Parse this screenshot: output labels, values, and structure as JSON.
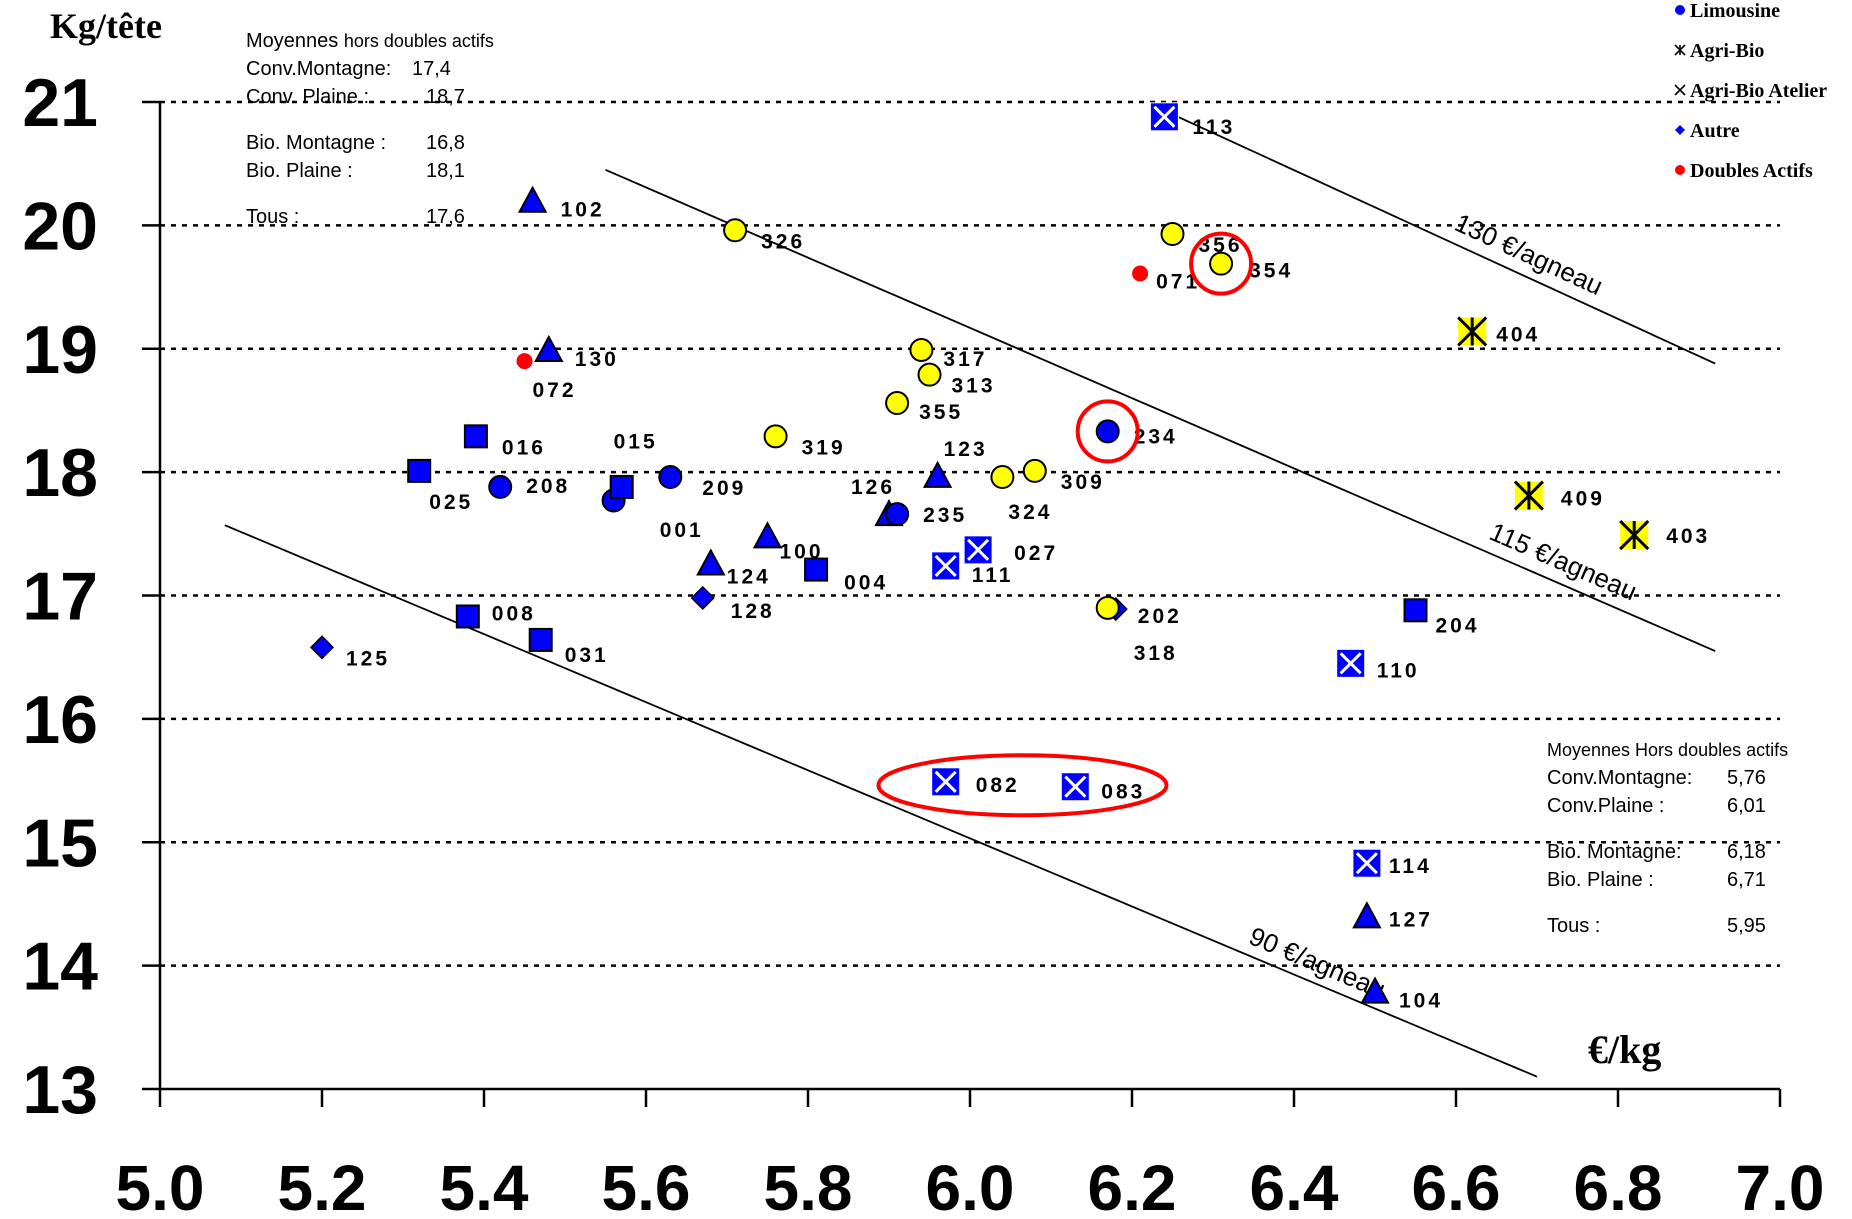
{
  "chart_data": {
    "type": "scatter",
    "xlabel": "€/kg",
    "ylabel": "Kg/tête",
    "xlim": [
      5.0,
      7.0
    ],
    "ylim": [
      13,
      21
    ],
    "x_ticks": [
      "5.0",
      "5.2",
      "5.4",
      "5.6",
      "5.8",
      "6.0",
      "6.2",
      "6.4",
      "6.6",
      "6.8",
      "7.0"
    ],
    "y_ticks": [
      "13",
      "14",
      "15",
      "16",
      "17",
      "18",
      "19",
      "20",
      "21"
    ],
    "grid": "horizontal dotted",
    "legend": {
      "position": "top-right",
      "entries": [
        {
          "label": "Limousine",
          "symbol": "circle",
          "color": "#0000ff"
        },
        {
          "label": "Agri-Bio",
          "symbol": "star",
          "color": "#000000"
        },
        {
          "label": "Agri-Bio Atelier",
          "symbol": "x",
          "color": "#000000"
        },
        {
          "label": "Autre",
          "symbol": "diamond",
          "color": "#0000ff"
        },
        {
          "label": "Doubles Actifs",
          "symbol": "dot",
          "color": "#ff0000"
        }
      ]
    },
    "reference_lines": [
      {
        "label": "90 €/agneau",
        "x": [
          5.08,
          6.7
        ],
        "y": [
          17.57,
          13.1
        ]
      },
      {
        "label": "115 €/agneau",
        "x": [
          5.55,
          6.92
        ],
        "y": [
          20.45,
          16.55
        ]
      },
      {
        "label": "130 €/agneau",
        "x": [
          6.25,
          6.92
        ],
        "y": [
          20.9,
          18.88
        ]
      }
    ],
    "points": [
      {
        "id": "113",
        "x": 6.24,
        "y": 20.88,
        "shape": "xsquare",
        "color": "#0000ff"
      },
      {
        "id": "102",
        "x": 5.46,
        "y": 20.2,
        "shape": "triangle",
        "color": "#0000ff"
      },
      {
        "id": "326",
        "x": 5.71,
        "y": 19.96,
        "shape": "circle",
        "color": "#ffff00"
      },
      {
        "id": "356",
        "x": 6.25,
        "y": 19.93,
        "shape": "circle",
        "color": "#ffff00"
      },
      {
        "id": "354",
        "x": 6.31,
        "y": 19.69,
        "shape": "circle",
        "color": "#ffff00"
      },
      {
        "id": "071",
        "x": 6.21,
        "y": 19.61,
        "shape": "dot",
        "color": "#ff0000"
      },
      {
        "id": "404",
        "x": 6.62,
        "y": 19.14,
        "shape": "star",
        "color": "#ffff00"
      },
      {
        "id": "130",
        "x": 5.48,
        "y": 18.99,
        "shape": "triangle",
        "color": "#0000ff"
      },
      {
        "id": "072",
        "x": 5.45,
        "y": 18.9,
        "shape": "dot",
        "color": "#ff0000"
      },
      {
        "id": "317",
        "x": 5.94,
        "y": 18.99,
        "shape": "circle",
        "color": "#ffff00"
      },
      {
        "id": "313",
        "x": 5.95,
        "y": 18.79,
        "shape": "circle",
        "color": "#ffff00"
      },
      {
        "id": "355",
        "x": 5.91,
        "y": 18.56,
        "shape": "circle",
        "color": "#ffff00"
      },
      {
        "id": "234",
        "x": 6.17,
        "y": 18.33,
        "shape": "circle",
        "color": "#0000ff"
      },
      {
        "id": "319",
        "x": 5.76,
        "y": 18.29,
        "shape": "circle",
        "color": "#ffff00"
      },
      {
        "id": "016",
        "x": 5.39,
        "y": 18.29,
        "shape": "square",
        "color": "#0000ff"
      },
      {
        "id": "015",
        "x": 5.56,
        "y": 17.77,
        "shape": "circle",
        "color": "#0000ff"
      },
      {
        "id": "025",
        "x": 5.32,
        "y": 18.01,
        "shape": "square",
        "color": "#0000ff"
      },
      {
        "id": "208",
        "x": 5.42,
        "y": 17.88,
        "shape": "circle",
        "color": "#0000ff"
      },
      {
        "id": "001",
        "x": 5.57,
        "y": 17.88,
        "shape": "square",
        "color": "#0000ff"
      },
      {
        "id": "209",
        "x": 5.63,
        "y": 17.96,
        "shape": "circle",
        "color": "#0000ff"
      },
      {
        "id": "123",
        "x": 5.96,
        "y": 17.97,
        "shape": "triangle",
        "color": "#0000ff"
      },
      {
        "id": "324",
        "x": 6.04,
        "y": 17.96,
        "shape": "circle",
        "color": "#ffff00"
      },
      {
        "id": "309",
        "x": 6.08,
        "y": 18.01,
        "shape": "circle",
        "color": "#ffff00"
      },
      {
        "id": "409",
        "x": 6.69,
        "y": 17.81,
        "shape": "star",
        "color": "#ffff00"
      },
      {
        "id": "126",
        "x": 5.9,
        "y": 17.66,
        "shape": "triangle",
        "color": "#0000ff"
      },
      {
        "id": "235",
        "x": 5.91,
        "y": 17.66,
        "shape": "circle",
        "color": "#0000ff"
      },
      {
        "id": "100",
        "x": 5.75,
        "y": 17.48,
        "shape": "triangle",
        "color": "#0000ff"
      },
      {
        "id": "403",
        "x": 6.82,
        "y": 17.49,
        "shape": "star",
        "color": "#ffff00"
      },
      {
        "id": "027",
        "x": 6.01,
        "y": 17.37,
        "shape": "xsquare",
        "color": "#0000ff"
      },
      {
        "id": "124",
        "x": 5.68,
        "y": 17.26,
        "shape": "triangle",
        "color": "#0000ff"
      },
      {
        "id": "111",
        "x": 5.97,
        "y": 17.24,
        "shape": "xsquare",
        "color": "#0000ff"
      },
      {
        "id": "004",
        "x": 5.81,
        "y": 17.21,
        "shape": "square",
        "color": "#0000ff"
      },
      {
        "id": "128",
        "x": 5.67,
        "y": 16.98,
        "shape": "diamond",
        "color": "#0000ff"
      },
      {
        "id": "202",
        "x": 6.18,
        "y": 16.89,
        "shape": "diamond",
        "color": "#0000ff"
      },
      {
        "id": "318",
        "x": 6.17,
        "y": 16.9,
        "shape": "circle",
        "color": "#ffff00"
      },
      {
        "id": "204",
        "x": 6.55,
        "y": 16.88,
        "shape": "square",
        "color": "#0000ff"
      },
      {
        "id": "008",
        "x": 5.38,
        "y": 16.83,
        "shape": "square",
        "color": "#0000ff"
      },
      {
        "id": "031",
        "x": 5.47,
        "y": 16.64,
        "shape": "square",
        "color": "#0000ff"
      },
      {
        "id": "125",
        "x": 5.2,
        "y": 16.58,
        "shape": "diamond",
        "color": "#0000ff"
      },
      {
        "id": "110",
        "x": 6.47,
        "y": 16.45,
        "shape": "xsquare",
        "color": "#0000ff"
      },
      {
        "id": "082",
        "x": 5.97,
        "y": 15.49,
        "shape": "xsquare",
        "color": "#0000ff"
      },
      {
        "id": "083",
        "x": 6.13,
        "y": 15.45,
        "shape": "xsquare",
        "color": "#0000ff"
      },
      {
        "id": "114",
        "x": 6.49,
        "y": 14.83,
        "shape": "xsquare",
        "color": "#0000ff"
      },
      {
        "id": "127",
        "x": 6.49,
        "y": 14.4,
        "shape": "triangle",
        "color": "#0000ff"
      },
      {
        "id": "104",
        "x": 6.5,
        "y": 13.79,
        "shape": "triangle",
        "color": "#0000ff"
      }
    ],
    "highlights": [
      {
        "around": "354",
        "shape": "circle",
        "color": "#ff0000"
      },
      {
        "around": "234",
        "shape": "circle",
        "color": "#ff0000"
      },
      {
        "around": [
          "082",
          "083"
        ],
        "shape": "ellipse",
        "color": "#ff0000"
      }
    ]
  },
  "notes": {
    "kg": {
      "title_main": "Moyennes",
      "title_rest": "hors doubles actifs",
      "rows": [
        {
          "label": "Conv.Montagne:",
          "value": "17,4"
        },
        {
          "label": "Conv. Plaine :",
          "value": "18,7"
        },
        {
          "label": "Bio. Montagne :",
          "value": "16,8"
        },
        {
          "label": "Bio. Plaine :",
          "value": "18,1"
        },
        {
          "label": "Tous :",
          "value": "17,6"
        }
      ]
    },
    "price": {
      "title": "Moyennes Hors doubles actifs",
      "rows": [
        {
          "label": "Conv.Montagne:",
          "value": "5,76"
        },
        {
          "label": "Conv.Plaine :",
          "value": "6,01"
        },
        {
          "label": "Bio. Montagne:",
          "value": "6,18"
        },
        {
          "label": "Bio. Plaine :",
          "value": "6,71"
        },
        {
          "label": "Tous :",
          "value": "5,95"
        }
      ]
    }
  }
}
